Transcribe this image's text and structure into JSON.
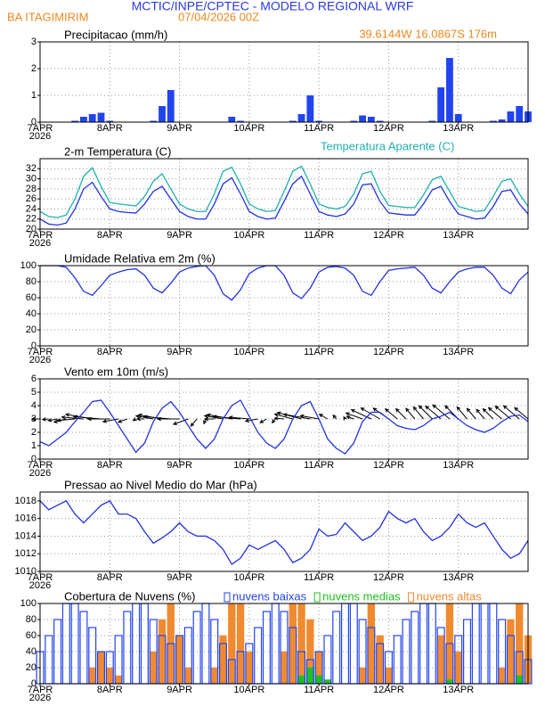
{
  "header": {
    "title": "MCTIC/INPE/CPTEC - MODELO REGIONAL WRF",
    "location": "BA ITAGIMIRIM",
    "run": "07/04/2026 00Z",
    "coords": "39.6144W 16.0867S 176m"
  },
  "time": {
    "x": [
      0,
      3,
      6,
      9,
      12,
      15,
      18,
      21,
      24,
      27,
      30,
      33,
      36,
      39,
      42,
      45,
      48,
      51,
      54,
      57,
      60,
      63,
      66,
      69,
      72,
      75,
      78,
      81,
      84,
      87,
      90,
      93,
      96,
      99,
      102,
      105,
      108,
      111,
      114,
      117,
      120,
      123,
      126,
      129,
      132,
      135,
      138,
      141,
      144,
      147,
      150,
      153,
      156,
      159,
      162,
      165,
      168
    ],
    "xlim": [
      0,
      168
    ],
    "xticks": [
      {
        "value": 0,
        "label": "7APR"
      },
      {
        "value": 24,
        "label": "8APR"
      },
      {
        "value": 48,
        "label": "9APR"
      },
      {
        "value": 72,
        "label": "10APR"
      },
      {
        "value": 96,
        "label": "11APR"
      },
      {
        "value": 120,
        "label": "12APR"
      },
      {
        "value": 144,
        "label": "13APR"
      }
    ],
    "year": "2026"
  },
  "chart_data": [
    {
      "type": "bar",
      "title": "Precipitacao (mm/h)",
      "color": "#2244ee",
      "ylim": [
        0,
        3
      ],
      "yticks": [
        0,
        1,
        2,
        3
      ],
      "grid": true,
      "values": [
        0,
        0,
        0,
        0,
        0.05,
        0.2,
        0.3,
        0.35,
        0.05,
        0,
        0,
        0,
        0,
        0.05,
        0.6,
        1.2,
        0,
        0,
        0,
        0,
        0,
        0,
        0.2,
        0.05,
        0,
        0,
        0,
        0,
        0,
        0.05,
        0.3,
        1.0,
        0.05,
        0,
        0,
        0,
        0.05,
        0.25,
        0.2,
        0.05,
        0,
        0,
        0,
        0,
        0,
        0.05,
        1.3,
        2.4,
        0.3,
        0,
        0,
        0,
        0.05,
        0.1,
        0.4,
        0.6,
        0.4
      ]
    },
    {
      "type": "line",
      "title": "2-m Temperatura (C)",
      "ylim": [
        20,
        34
      ],
      "yticks": [
        20,
        22,
        24,
        26,
        28,
        30,
        32
      ],
      "grid": true,
      "series": [
        {
          "color": "#2233dd",
          "values": [
            22,
            21,
            20.8,
            21.2,
            24,
            28,
            29.3,
            26.5,
            24,
            23.5,
            23.3,
            23.2,
            25,
            27.5,
            28.5,
            26,
            23.5,
            22.5,
            22,
            22,
            25,
            29,
            30.2,
            27,
            23.5,
            22.5,
            22,
            22.2,
            25.5,
            29,
            30.5,
            27,
            23.5,
            22.8,
            22.5,
            23,
            25,
            28.8,
            29,
            25.5,
            23.2,
            23,
            22.8,
            22.8,
            25,
            27.8,
            28.5,
            25.5,
            23,
            22.5,
            22,
            22.2,
            24.5,
            27.5,
            27.8,
            25,
            23
          ]
        },
        {
          "name": "Temperatura Aparente (C)",
          "color": "#20b0b0",
          "values": [
            23.5,
            22.5,
            22.3,
            22.8,
            26,
            30.5,
            32.2,
            28.5,
            25.3,
            25,
            24.8,
            24.6,
            26.5,
            29.5,
            31,
            28,
            25,
            24,
            23.5,
            23.5,
            27,
            31.5,
            32.3,
            29,
            25,
            24,
            23.5,
            23.7,
            27.5,
            31.5,
            32.5,
            29,
            25,
            24.3,
            24,
            24.5,
            27,
            31,
            31.5,
            27.5,
            24.7,
            24.5,
            24.3,
            24.3,
            26.8,
            29.8,
            30.5,
            27.5,
            24.5,
            24,
            23.5,
            23.7,
            26.5,
            29.5,
            30,
            27,
            24.5
          ]
        }
      ]
    },
    {
      "type": "line",
      "title": "Umidade Relativa em 2m (%)",
      "ylim": [
        0,
        100
      ],
      "yticks": [
        0,
        20,
        40,
        60,
        80,
        100
      ],
      "grid": true,
      "series": [
        {
          "color": "#2233dd",
          "values": [
            100,
            100,
            100,
            98,
            85,
            68,
            63,
            75,
            88,
            92,
            95,
            96,
            88,
            72,
            66,
            78,
            92,
            97,
            99,
            100,
            88,
            65,
            57,
            70,
            90,
            97,
            100,
            100,
            88,
            66,
            59,
            72,
            92,
            98,
            99,
            97,
            88,
            68,
            63,
            80,
            94,
            96,
            97,
            98,
            88,
            72,
            66,
            80,
            92,
            96,
            98,
            98,
            88,
            72,
            65,
            82,
            92
          ]
        }
      ]
    },
    {
      "type": "line",
      "title": "Vento em 10m (m/s)",
      "ylim": [
        0,
        6
      ],
      "yticks": [
        0,
        1,
        2,
        3,
        4,
        5,
        6
      ],
      "grid": true,
      "series": [
        {
          "color": "#2233dd",
          "values": [
            1.3,
            1,
            1.5,
            2,
            2.8,
            3.5,
            4.3,
            4.4,
            3.5,
            2.5,
            1.5,
            0.5,
            1.2,
            2.8,
            3.8,
            4.3,
            3.5,
            2.5,
            1.5,
            0.8,
            1.5,
            3,
            4,
            4.4,
            3.2,
            2,
            1.2,
            0.8,
            1.5,
            3,
            4,
            4.3,
            3,
            1.5,
            0.8,
            0.4,
            1.2,
            2.8,
            3.5,
            3.5,
            3,
            2.5,
            2.3,
            2.2,
            2.5,
            3,
            3.2,
            3.5,
            3,
            2.5,
            2.2,
            2,
            2.3,
            2.8,
            3.2,
            3.3,
            2.8
          ],
          "direction": [
            90,
            85,
            80,
            75,
            85,
            95,
            100,
            95,
            90,
            80,
            70,
            60,
            90,
            100,
            100,
            95,
            90,
            70,
            40,
            20,
            90,
            100,
            100,
            95,
            95,
            80,
            60,
            40,
            95,
            105,
            105,
            100,
            100,
            120,
            140,
            150,
            110,
            110,
            115,
            120,
            125,
            130,
            135,
            140,
            140,
            135,
            130,
            130,
            135,
            140,
            140,
            140,
            135,
            130,
            130,
            130,
            130
          ]
        }
      ],
      "arrow_base": 3
    },
    {
      "type": "line",
      "title": "Pressao ao Nivel Medio do Mar (hPa)",
      "ylim": [
        1010,
        1019
      ],
      "yticks": [
        1010,
        1012,
        1014,
        1016,
        1018
      ],
      "grid": true,
      "series": [
        {
          "color": "#2233dd",
          "values": [
            1018,
            1017,
            1017.5,
            1018,
            1016.5,
            1015.5,
            1016.5,
            1017.5,
            1018,
            1016.5,
            1016.5,
            1016,
            1014.5,
            1013.2,
            1013.8,
            1014.5,
            1015.5,
            1014.5,
            1014,
            1014,
            1013.5,
            1012.5,
            1010.8,
            1011.5,
            1013,
            1012.5,
            1013,
            1013.5,
            1012.5,
            1011,
            1011.5,
            1012.5,
            1014.8,
            1014,
            1014.2,
            1015.5,
            1014.5,
            1013.5,
            1014,
            1015,
            1016.8,
            1016,
            1015.5,
            1016,
            1014.5,
            1013.5,
            1014,
            1015,
            1016.5,
            1015.5,
            1015,
            1015.5,
            1014,
            1012.5,
            1011.5,
            1012,
            1013.5
          ]
        }
      ]
    },
    {
      "type": "bar",
      "title": "Cobertura de Nuvens (%)",
      "ylim": [
        0,
        100
      ],
      "yticks": [
        0,
        20,
        40,
        60,
        80,
        100
      ],
      "grid": true,
      "series": [
        {
          "name": "nuvens baixas",
          "color": "#2244ee",
          "filled": false,
          "values": [
            40,
            60,
            80,
            100,
            100,
            90,
            70,
            40,
            40,
            60,
            90,
            100,
            100,
            80,
            60,
            50,
            60,
            70,
            90,
            100,
            80,
            50,
            30,
            40,
            50,
            70,
            90,
            100,
            90,
            70,
            40,
            30,
            40,
            60,
            90,
            100,
            100,
            80,
            70,
            50,
            40,
            60,
            80,
            90,
            100,
            100,
            70,
            50,
            60,
            80,
            100,
            100,
            100,
            80,
            60,
            40,
            30
          ]
        },
        {
          "name": "nuvens medias",
          "color": "#20c020",
          "filled": true,
          "values": [
            0,
            0,
            0,
            0,
            0,
            0,
            0,
            0,
            0,
            0,
            0,
            0,
            0,
            0,
            0,
            0,
            0,
            0,
            0,
            0,
            0,
            0,
            0,
            0,
            0,
            0,
            0,
            0,
            0,
            0,
            10,
            20,
            10,
            5,
            0,
            0,
            0,
            0,
            0,
            0,
            0,
            0,
            0,
            0,
            0,
            0,
            0,
            5,
            0,
            0,
            0,
            0,
            0,
            0,
            0,
            10,
            0
          ]
        },
        {
          "name": "nuvens altas",
          "color": "#f08a30",
          "filled": true,
          "values": [
            0,
            0,
            0,
            0,
            0,
            0,
            20,
            40,
            20,
            10,
            0,
            0,
            0,
            40,
            80,
            100,
            60,
            20,
            0,
            0,
            20,
            60,
            100,
            100,
            40,
            0,
            0,
            0,
            40,
            100,
            100,
            80,
            40,
            0,
            0,
            0,
            0,
            20,
            100,
            60,
            20,
            0,
            0,
            0,
            0,
            0,
            60,
            100,
            40,
            0,
            0,
            0,
            0,
            20,
            80,
            100,
            60
          ]
        }
      ]
    }
  ]
}
